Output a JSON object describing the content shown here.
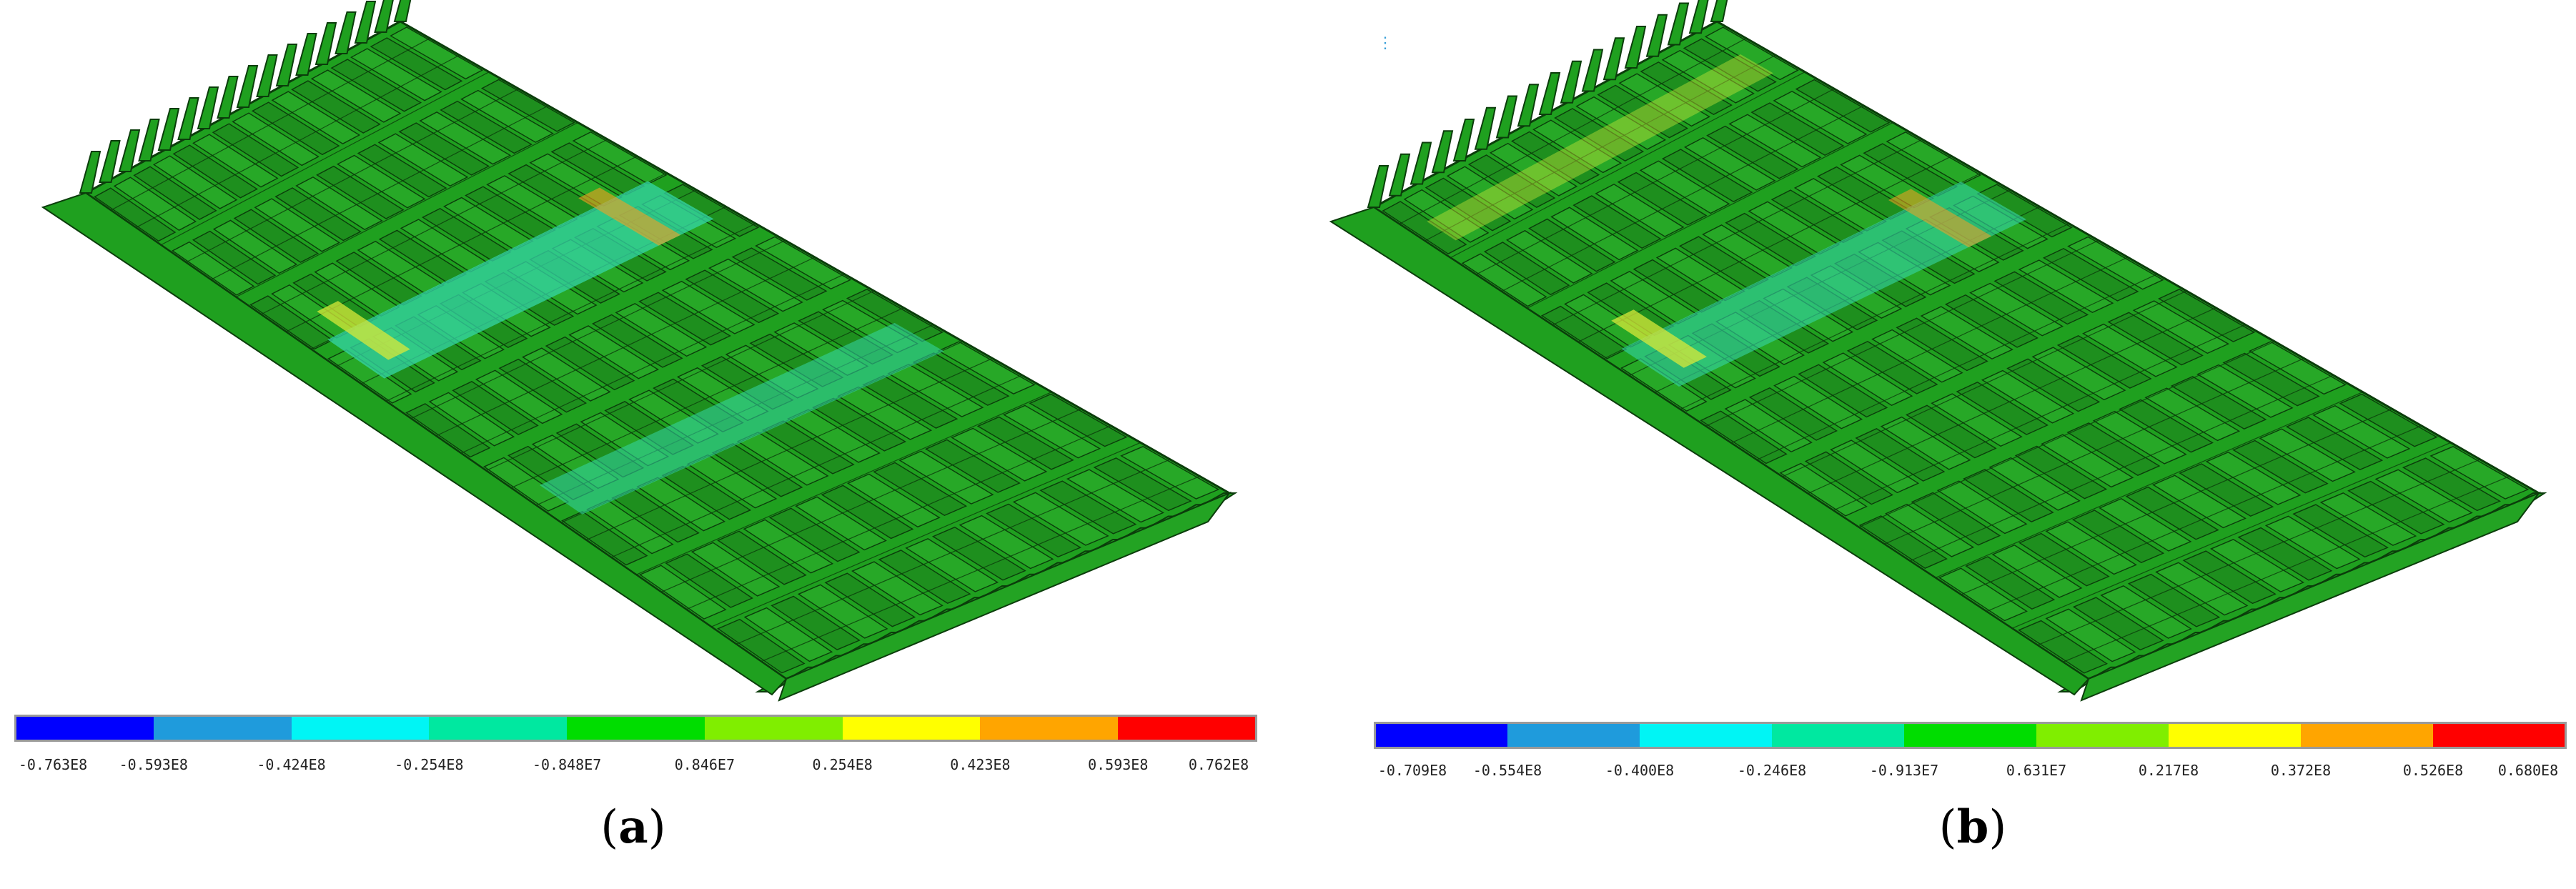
{
  "panels": [
    {
      "id": "a",
      "caption_letter": "a",
      "legend_labels": [
        "-0.763E8",
        "-0.593E8",
        "-0.424E8",
        "-0.254E8",
        "-0.848E7",
        "0.846E7",
        "0.254E8",
        "0.423E8",
        "0.593E8",
        "0.762E8"
      ]
    },
    {
      "id": "b",
      "caption_letter": "b",
      "legend_labels": [
        "-0.709E8",
        "-0.554E8",
        "-0.400E8",
        "-0.246E8",
        "-0.913E7",
        "0.631E7",
        "0.217E8",
        "0.372E8",
        "0.526E8",
        "0.680E8"
      ]
    }
  ],
  "legend_colors": [
    "#0000ff",
    "#1f9bdc",
    "#00f5f5",
    "#00e8a0",
    "#00dd00",
    "#80ee00",
    "#ffff00",
    "#ffa500",
    "#ff0000"
  ],
  "model_colors": {
    "structure": "#1fa01f",
    "dark": "#0b3d0b",
    "highlight_cyan": "#35d6a8",
    "highlight_yellow": "#d8e83a",
    "highlight_orange": "#f5a020"
  }
}
